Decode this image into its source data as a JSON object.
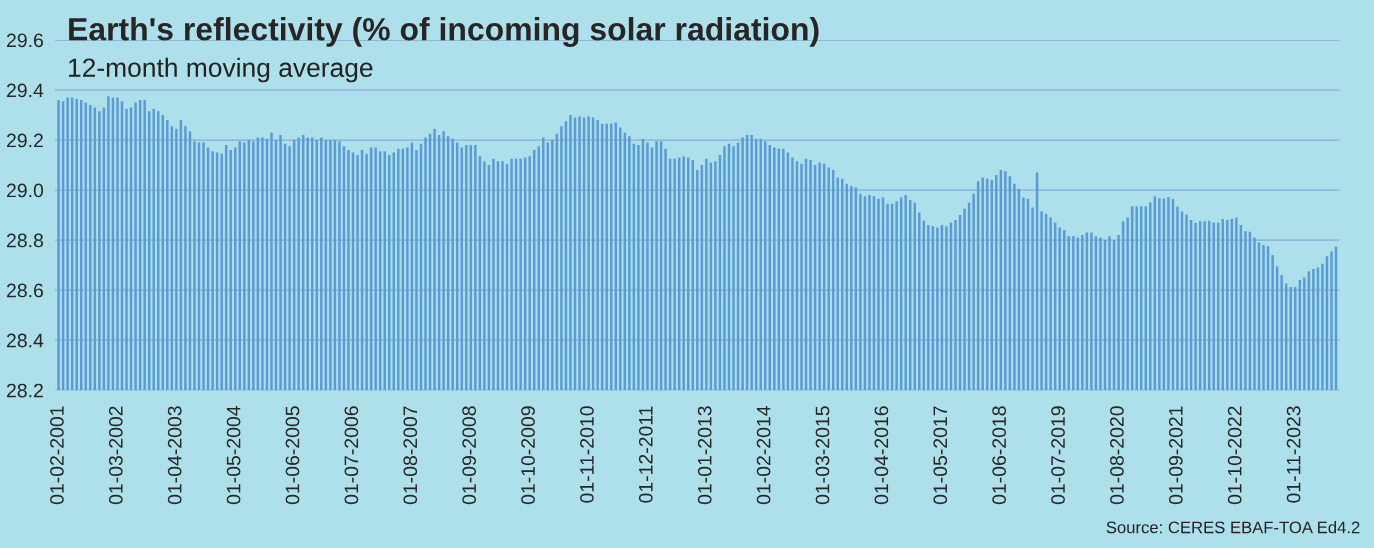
{
  "chart_data": {
    "type": "bar",
    "title": "Earth's reflectivity (% of incoming solar radiation)",
    "subtitle": "12-month moving average",
    "annotations": [
      "Source: CERES EBAF-TOA Ed4.2"
    ],
    "categories": [
      "01-02-2001",
      null,
      null,
      null,
      null,
      null,
      null,
      null,
      null,
      null,
      null,
      null,
      null,
      "01-03-2002",
      null,
      null,
      null,
      null,
      null,
      null,
      null,
      null,
      null,
      null,
      null,
      null,
      "01-04-2003",
      null,
      null,
      null,
      null,
      null,
      null,
      null,
      null,
      null,
      null,
      null,
      null,
      "01-05-2004",
      null,
      null,
      null,
      null,
      null,
      null,
      null,
      null,
      null,
      null,
      null,
      null,
      "01-06-2005",
      null,
      null,
      null,
      null,
      null,
      null,
      null,
      null,
      null,
      null,
      null,
      null,
      "01-07-2006",
      null,
      null,
      null,
      null,
      null,
      null,
      null,
      null,
      null,
      null,
      null,
      null,
      "01-08-2007",
      null,
      null,
      null,
      null,
      null,
      null,
      null,
      null,
      null,
      null,
      null,
      null,
      "01-09-2008",
      null,
      null,
      null,
      null,
      null,
      null,
      null,
      null,
      null,
      null,
      null,
      null,
      "01-10-2009",
      null,
      null,
      null,
      null,
      null,
      null,
      null,
      null,
      null,
      null,
      null,
      null,
      "01-11-2010",
      null,
      null,
      null,
      null,
      null,
      null,
      null,
      null,
      null,
      null,
      null,
      null,
      "01-12-2011",
      null,
      null,
      null,
      null,
      null,
      null,
      null,
      null,
      null,
      null,
      null,
      null,
      "01-01-2013",
      null,
      null,
      null,
      null,
      null,
      null,
      null,
      null,
      null,
      null,
      null,
      null,
      "01-02-2014",
      null,
      null,
      null,
      null,
      null,
      null,
      null,
      null,
      null,
      null,
      null,
      null,
      "01-03-2015",
      null,
      null,
      null,
      null,
      null,
      null,
      null,
      null,
      null,
      null,
      null,
      null,
      "01-04-2016",
      null,
      null,
      null,
      null,
      null,
      null,
      null,
      null,
      null,
      null,
      null,
      null,
      "01-05-2017",
      null,
      null,
      null,
      null,
      null,
      null,
      null,
      null,
      null,
      null,
      null,
      null,
      "01-06-2018",
      null,
      null,
      null,
      null,
      null,
      null,
      null,
      null,
      null,
      null,
      null,
      null,
      "01-07-2019",
      null,
      null,
      null,
      null,
      null,
      null,
      null,
      null,
      null,
      null,
      null,
      null,
      "01-08-2020",
      null,
      null,
      null,
      null,
      null,
      null,
      null,
      null,
      null,
      null,
      null,
      null,
      "01-09-2021",
      null,
      null,
      null,
      null,
      null,
      null,
      null,
      null,
      null,
      null,
      null,
      null,
      "01-10-2022",
      null,
      null,
      null,
      null,
      null,
      null,
      null,
      null,
      null,
      null,
      null,
      null,
      "01-11-2023",
      null,
      null,
      null,
      null,
      null,
      null,
      null,
      null,
      null
    ],
    "values": [
      29.36,
      29.355,
      29.37,
      29.37,
      29.365,
      29.36,
      29.35,
      29.34,
      29.33,
      29.315,
      29.33,
      29.375,
      29.37,
      29.37,
      29.355,
      29.325,
      29.33,
      29.35,
      29.36,
      29.36,
      29.315,
      29.325,
      29.315,
      29.3,
      29.28,
      29.255,
      29.245,
      29.28,
      29.255,
      29.235,
      29.195,
      29.19,
      29.19,
      29.17,
      29.155,
      29.15,
      29.145,
      29.18,
      29.16,
      29.17,
      29.195,
      29.19,
      29.2,
      29.195,
      29.21,
      29.21,
      29.205,
      29.23,
      29.2,
      29.22,
      29.185,
      29.175,
      29.2,
      29.21,
      29.22,
      29.21,
      29.21,
      29.2,
      29.21,
      29.2,
      29.2,
      29.2,
      29.195,
      29.175,
      29.16,
      29.15,
      29.14,
      29.16,
      29.145,
      29.17,
      29.17,
      29.155,
      29.155,
      29.14,
      29.15,
      29.165,
      29.165,
      29.17,
      29.19,
      29.16,
      29.185,
      29.21,
      29.225,
      29.245,
      29.22,
      29.235,
      29.215,
      29.205,
      29.19,
      29.17,
      29.18,
      29.18,
      29.18,
      29.135,
      29.115,
      29.1,
      29.125,
      29.115,
      29.115,
      29.105,
      29.125,
      29.125,
      29.125,
      29.13,
      29.135,
      29.16,
      29.175,
      29.21,
      29.19,
      29.2,
      29.225,
      29.255,
      29.275,
      29.3,
      29.29,
      29.295,
      29.29,
      29.295,
      29.29,
      29.28,
      29.265,
      29.265,
      29.265,
      29.27,
      29.25,
      29.23,
      29.215,
      29.185,
      29.18,
      29.205,
      29.19,
      29.17,
      29.195,
      29.195,
      29.165,
      29.125,
      29.125,
      29.13,
      29.135,
      29.13,
      29.12,
      29.08,
      29.1,
      29.125,
      29.11,
      29.115,
      29.14,
      29.175,
      29.185,
      29.175,
      29.19,
      29.21,
      29.22,
      29.22,
      29.205,
      29.205,
      29.195,
      29.18,
      29.17,
      29.165,
      29.165,
      29.15,
      29.13,
      29.115,
      29.105,
      29.125,
      29.12,
      29.1,
      29.11,
      29.105,
      29.09,
      29.08,
      29.05,
      29.045,
      29.025,
      29.015,
      29.01,
      28.985,
      28.975,
      28.98,
      28.975,
      28.965,
      28.97,
      28.945,
      28.945,
      28.955,
      28.97,
      28.98,
      28.96,
      28.95,
      28.91,
      28.877,
      28.86,
      28.855,
      28.85,
      28.86,
      28.855,
      28.87,
      28.88,
      28.9,
      28.925,
      28.95,
      28.985,
      29.035,
      29.05,
      29.045,
      29.04,
      29.06,
      29.08,
      29.075,
      29.055,
      29.025,
      29.005,
      28.97,
      28.965,
      28.93,
      29.07,
      28.915,
      28.905,
      28.89,
      28.87,
      28.85,
      28.84,
      28.815,
      28.815,
      28.81,
      28.82,
      28.83,
      28.83,
      28.815,
      28.81,
      28.8,
      28.815,
      28.8,
      28.82,
      28.875,
      28.89,
      28.935,
      28.935,
      28.935,
      28.935,
      28.95,
      28.975,
      28.967,
      28.966,
      28.972,
      28.964,
      28.934,
      28.914,
      28.902,
      28.88,
      28.868,
      28.875,
      28.875,
      28.877,
      28.87,
      28.87,
      28.884,
      28.88,
      28.885,
      28.89,
      28.86,
      28.835,
      28.833,
      28.81,
      28.79,
      28.78,
      28.775,
      28.74,
      28.695,
      28.66,
      28.626,
      28.613,
      28.613,
      28.64,
      28.65,
      28.675,
      28.684,
      28.69,
      28.705,
      28.735,
      28.755,
      28.774
    ],
    "color": "#5b9bd5",
    "ylim": [
      28.2,
      29.6
    ],
    "yticks": [
      28.2,
      28.4,
      28.6,
      28.8,
      {
        "value": 29,
        "label": "29.0"
      },
      29.2,
      29.4,
      29.6
    ],
    "grid": "y"
  }
}
